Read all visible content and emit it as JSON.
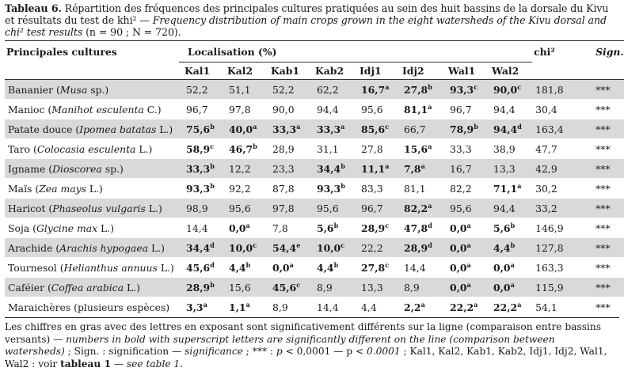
{
  "caption": {
    "label": "Tableau 6.",
    "fr": " Répartition des fréquences des principales cultures pratiquées au sein des huit bassins de la dorsale du Kivu et résultats du test de khi² — ",
    "en": "Frequency distribution of main crops grown in the eight watersheds of the Kivu dorsal and chi² test results",
    "en_tail": " (n = 90 ; N = 720)."
  },
  "header": {
    "crops": "Principales cultures",
    "location": "Localisation (%)",
    "chi": "chi²",
    "sign": "Sign.",
    "sites": [
      "Kal1",
      "Kal2",
      "Kab1",
      "Kab2",
      "Idj1",
      "Idj2",
      "Wal1",
      "Wal2"
    ]
  },
  "rows": [
    {
      "name": "Bananier (",
      "latin": "Musa",
      "suffix": " sp.)",
      "cells": [
        {
          "v": "52,2",
          "s": "",
          "b": false
        },
        {
          "v": "51,1",
          "s": "",
          "b": false
        },
        {
          "v": "52,2",
          "s": "",
          "b": false
        },
        {
          "v": "62,2",
          "s": "",
          "b": false
        },
        {
          "v": "16,7",
          "s": "a",
          "b": true
        },
        {
          "v": "27,8",
          "s": "b",
          "b": true
        },
        {
          "v": "93,3",
          "s": "c",
          "b": true
        },
        {
          "v": "90,0",
          "s": "c",
          "b": true
        }
      ],
      "chi": "181,8",
      "sig": "***"
    },
    {
      "name": "Manioc (",
      "latin": "Manihot esculenta",
      "suffix": " C.)",
      "cells": [
        {
          "v": "96,7",
          "s": "",
          "b": false
        },
        {
          "v": "97,8",
          "s": "",
          "b": false
        },
        {
          "v": "90,0",
          "s": "",
          "b": false
        },
        {
          "v": "94,4",
          "s": "",
          "b": false
        },
        {
          "v": "95,6",
          "s": "",
          "b": false
        },
        {
          "v": "81,1",
          "s": "a",
          "b": true
        },
        {
          "v": "96,7",
          "s": "",
          "b": false
        },
        {
          "v": "94,4",
          "s": "",
          "b": false
        }
      ],
      "chi": "30,4",
      "sig": "***"
    },
    {
      "name": "Patate douce (",
      "latin": "Ipomea batatas",
      "suffix": " L.)",
      "cells": [
        {
          "v": "75,6",
          "s": "b",
          "b": true
        },
        {
          "v": "40,0",
          "s": "a",
          "b": true
        },
        {
          "v": "33,3",
          "s": "a",
          "b": true
        },
        {
          "v": "33,3",
          "s": "a",
          "b": true
        },
        {
          "v": "85,6",
          "s": "c",
          "b": true
        },
        {
          "v": "66,7",
          "s": "",
          "b": false
        },
        {
          "v": "78,9",
          "s": "b",
          "b": true
        },
        {
          "v": "94,4",
          "s": "d",
          "b": true
        }
      ],
      "chi": "163,4",
      "sig": "***"
    },
    {
      "name": "Taro (",
      "latin": "Colocasia esculenta",
      "suffix": " L.)",
      "cells": [
        {
          "v": "58,9",
          "s": "c",
          "b": true
        },
        {
          "v": "46,7",
          "s": "b",
          "b": true
        },
        {
          "v": "28,9",
          "s": "",
          "b": false
        },
        {
          "v": "31,1",
          "s": "",
          "b": false
        },
        {
          "v": "27,8",
          "s": "",
          "b": false
        },
        {
          "v": "15,6",
          "s": "a",
          "b": true
        },
        {
          "v": "33,3",
          "s": "",
          "b": false
        },
        {
          "v": "38,9",
          "s": "",
          "b": false
        }
      ],
      "chi": "47,7",
      "sig": "***"
    },
    {
      "name": "Igname (",
      "latin": "Dioscorea",
      "suffix": " sp.)",
      "cells": [
        {
          "v": "33,3",
          "s": "b",
          "b": true
        },
        {
          "v": "12,2",
          "s": "",
          "b": false
        },
        {
          "v": "23,3",
          "s": "",
          "b": false
        },
        {
          "v": "34,4",
          "s": "b",
          "b": true
        },
        {
          "v": "11,1",
          "s": "a",
          "b": true
        },
        {
          "v": "7,8",
          "s": "a",
          "b": true
        },
        {
          "v": "16,7",
          "s": "",
          "b": false
        },
        {
          "v": "13,3",
          "s": "",
          "b": false
        }
      ],
      "chi": "42,9",
      "sig": "***"
    },
    {
      "name": "Maïs (",
      "latin": "Zea mays",
      "suffix": " L.)",
      "cells": [
        {
          "v": "93,3",
          "s": "b",
          "b": true
        },
        {
          "v": "92,2",
          "s": "",
          "b": false
        },
        {
          "v": "87,8",
          "s": "",
          "b": false
        },
        {
          "v": "93,3",
          "s": "b",
          "b": true
        },
        {
          "v": "83,3",
          "s": "",
          "b": false
        },
        {
          "v": "81,1",
          "s": "",
          "b": false
        },
        {
          "v": "82,2",
          "s": "",
          "b": false
        },
        {
          "v": "71,1",
          "s": "a",
          "b": true
        }
      ],
      "chi": "30,2",
      "sig": "***"
    },
    {
      "name": "Haricot (",
      "latin": "Phaseolus vulgaris",
      "suffix": " L.)",
      "cells": [
        {
          "v": "98,9",
          "s": "",
          "b": false
        },
        {
          "v": "95,6",
          "s": "",
          "b": false
        },
        {
          "v": "97,8",
          "s": "",
          "b": false
        },
        {
          "v": "95,6",
          "s": "",
          "b": false
        },
        {
          "v": "96,7",
          "s": "",
          "b": false
        },
        {
          "v": "82,2",
          "s": "a",
          "b": true
        },
        {
          "v": "95,6",
          "s": "",
          "b": false
        },
        {
          "v": "94,4",
          "s": "",
          "b": false
        }
      ],
      "chi": "33,2",
      "sig": "***"
    },
    {
      "name": "Soja (",
      "latin": "Glycine max",
      "suffix": " L.)",
      "cells": [
        {
          "v": "14,4",
          "s": "",
          "b": false
        },
        {
          "v": "0,0",
          "s": "a",
          "b": true
        },
        {
          "v": "7,8",
          "s": "",
          "b": false
        },
        {
          "v": "5,6",
          "s": "b",
          "b": true
        },
        {
          "v": "28,9",
          "s": "c",
          "b": true
        },
        {
          "v": "47,8",
          "s": "d",
          "b": true
        },
        {
          "v": "0,0",
          "s": "a",
          "b": true
        },
        {
          "v": "5,6",
          "s": "b",
          "b": true
        }
      ],
      "chi": "146,9",
      "sig": "***"
    },
    {
      "name": "Arachide (",
      "latin": "Arachis hypogaea",
      "suffix": " L.)",
      "cells": [
        {
          "v": "34,4",
          "s": "d",
          "b": true
        },
        {
          "v": "10,0",
          "s": "c",
          "b": true
        },
        {
          "v": "54,4",
          "s": "e",
          "b": true
        },
        {
          "v": "10,0",
          "s": "c",
          "b": true
        },
        {
          "v": "22,2",
          "s": "",
          "b": false
        },
        {
          "v": "28,9",
          "s": "d",
          "b": true
        },
        {
          "v": "0,0",
          "s": "a",
          "b": true
        },
        {
          "v": "4,4",
          "s": "b",
          "b": true
        }
      ],
      "chi": "127,8",
      "sig": "***"
    },
    {
      "name": "Tournesol (",
      "latin": "Helianthus annuus",
      "suffix": " L.)",
      "cells": [
        {
          "v": "45,6",
          "s": "d",
          "b": true
        },
        {
          "v": "4,4",
          "s": "b",
          "b": true
        },
        {
          "v": "0,0",
          "s": "a",
          "b": true
        },
        {
          "v": "4,4",
          "s": "b",
          "b": true
        },
        {
          "v": "27,8",
          "s": "c",
          "b": true
        },
        {
          "v": "14,4",
          "s": "",
          "b": false
        },
        {
          "v": "0,0",
          "s": "a",
          "b": true
        },
        {
          "v": "0,0",
          "s": "a",
          "b": true
        }
      ],
      "chi": "163,3",
      "sig": "***"
    },
    {
      "name": "Caféier (",
      "latin": "Coffea arabica",
      "suffix": " L.)",
      "cells": [
        {
          "v": "28,9",
          "s": "b",
          "b": true
        },
        {
          "v": "15,6",
          "s": "",
          "b": false
        },
        {
          "v": "45,6",
          "s": "c",
          "b": true
        },
        {
          "v": "8,9",
          "s": "",
          "b": false
        },
        {
          "v": "13,3",
          "s": "",
          "b": false
        },
        {
          "v": "8,9",
          "s": "",
          "b": false
        },
        {
          "v": "0,0",
          "s": "a",
          "b": true
        },
        {
          "v": "0,0",
          "s": "a",
          "b": true
        }
      ],
      "chi": "115,9",
      "sig": "***"
    },
    {
      "name": "Maraichères (plusieurs espèces)",
      "latin": "",
      "suffix": "",
      "cells": [
        {
          "v": "3,3",
          "s": "a",
          "b": true
        },
        {
          "v": "1,1",
          "s": "a",
          "b": true
        },
        {
          "v": "8,9",
          "s": "",
          "b": false
        },
        {
          "v": "14,4",
          "s": "",
          "b": false
        },
        {
          "v": "4,4",
          "s": "",
          "b": false
        },
        {
          "v": "2,2",
          "s": "a",
          "b": true
        },
        {
          "v": "22,2",
          "s": "a",
          "b": true
        },
        {
          "v": "22,2",
          "s": "a",
          "b": true
        }
      ],
      "chi": "54,1",
      "sig": "***"
    }
  ],
  "footnote": {
    "p1": "Les chiffres en gras avec des lettres en exposant sont significativement différents sur la ligne (comparaison entre bassins versants) — ",
    "p2": "numbers in bold with superscript letters are significantly different on the line (comparison between watersheds)",
    "p3": " ; Sign. : signification — ",
    "p4": "significance",
    "p5": " ; *** : ",
    "p6": "p",
    "p7": " < 0,0001 — p ",
    "p8": "< 0.0001",
    "p9": " ; Kal1, Kal2, Kab1, Kab2, Idj1, Idj2, Wal1, Wal2 : voir ",
    "p10": "tableau 1",
    "p11": " — ",
    "p12": "see table 1."
  }
}
